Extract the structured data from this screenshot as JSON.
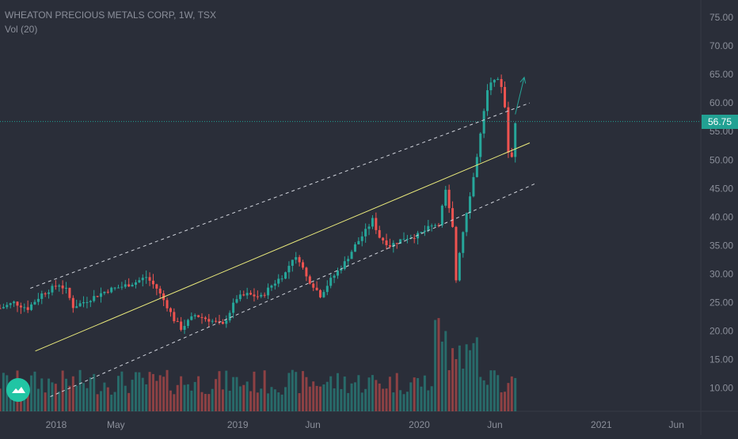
{
  "legend": {
    "symbol": "WHEATON PRECIOUS METALS CORP, 1W, TSX",
    "volume": "Vol (20)"
  },
  "last_price": "56.75",
  "colors": {
    "background": "#2a2e39",
    "up": "#26a69a",
    "down": "#ef5350",
    "trendline": "#ecec7c",
    "channel": "#d1d4dc",
    "price_line": "#22a193",
    "axis_text": "#8b8f9a"
  },
  "chart_data": {
    "type": "candlestick",
    "title": "",
    "xlabel": "",
    "ylabel": "",
    "y_ticks": [
      "10.00",
      "15.00",
      "20.00",
      "25.00",
      "30.00",
      "35.00",
      "40.00",
      "45.00",
      "50.00",
      "55.00",
      "60.00",
      "65.00",
      "70.00",
      "75.00"
    ],
    "ylim": [
      6,
      78
    ],
    "x_ticks": [
      {
        "label": "2018",
        "date": "2018-01-01"
      },
      {
        "label": "May",
        "date": "2018-05-01"
      },
      {
        "label": "2019",
        "date": "2019-01-01"
      },
      {
        "label": "Jun",
        "date": "2019-06-01"
      },
      {
        "label": "2020",
        "date": "2020-01-01"
      },
      {
        "label": "Jun",
        "date": "2020-06-01"
      },
      {
        "label": "2021",
        "date": "2021-01-01"
      },
      {
        "label": "Jun",
        "date": "2021-06-01"
      }
    ],
    "xlim": [
      "2017-09-10",
      "2021-07-20"
    ],
    "price_close_points": [
      [
        "2017-09-10",
        24
      ],
      [
        "2017-10-08",
        25
      ],
      [
        "2017-11-05",
        24
      ],
      [
        "2017-12-03",
        26.5
      ],
      [
        "2018-01-07",
        28.2
      ],
      [
        "2018-01-21",
        27.2
      ],
      [
        "2018-02-04",
        24.3
      ],
      [
        "2018-02-18",
        24.8
      ],
      [
        "2018-03-18",
        26
      ],
      [
        "2018-04-15",
        27.2
      ],
      [
        "2018-05-13",
        27.8
      ],
      [
        "2018-06-10",
        28.6
      ],
      [
        "2018-07-01",
        29.5
      ],
      [
        "2018-07-22",
        27.5
      ],
      [
        "2018-08-12",
        24.4
      ],
      [
        "2018-08-26",
        22
      ],
      [
        "2018-09-09",
        20.5
      ],
      [
        "2018-10-07",
        22.8
      ],
      [
        "2018-11-04",
        22
      ],
      [
        "2018-12-02",
        21
      ],
      [
        "2018-12-30",
        25.8
      ],
      [
        "2019-01-20",
        26.4
      ],
      [
        "2019-02-17",
        26
      ],
      [
        "2019-03-10",
        28
      ],
      [
        "2019-04-07",
        30.2
      ],
      [
        "2019-04-21",
        32.8
      ],
      [
        "2019-05-05",
        32.5
      ],
      [
        "2019-05-19",
        29.5
      ],
      [
        "2019-06-02",
        28
      ],
      [
        "2019-06-16",
        26.3
      ],
      [
        "2019-07-07",
        29
      ],
      [
        "2019-08-04",
        32
      ],
      [
        "2019-08-25",
        35
      ],
      [
        "2019-09-15",
        37.5
      ],
      [
        "2019-09-29",
        39.5
      ],
      [
        "2019-10-13",
        36.5
      ],
      [
        "2019-11-03",
        35
      ],
      [
        "2019-12-01",
        36.3
      ],
      [
        "2019-12-29",
        36.8
      ],
      [
        "2020-01-19",
        38
      ],
      [
        "2020-02-09",
        39
      ],
      [
        "2020-02-23",
        44.5
      ],
      [
        "2020-03-08",
        38
      ],
      [
        "2020-03-15",
        29
      ],
      [
        "2020-03-22",
        34
      ],
      [
        "2020-04-05",
        41
      ],
      [
        "2020-04-19",
        47
      ],
      [
        "2020-05-03",
        54.5
      ],
      [
        "2020-05-17",
        62
      ],
      [
        "2020-05-31",
        64.5
      ],
      [
        "2020-06-14",
        63
      ],
      [
        "2020-06-21",
        59.5
      ],
      [
        "2020-06-28",
        51
      ],
      [
        "2020-07-05",
        50.5
      ],
      [
        "2020-07-12",
        56.75
      ]
    ],
    "volume_ylim": [
      0,
      40
    ],
    "annotations": [
      {
        "type": "trendline",
        "from": [
          "2017-11-20",
          16.5
        ],
        "to": [
          "2020-08-10",
          53
        ]
      },
      {
        "type": "channel-upper",
        "from": [
          "2017-11-10",
          27.5
        ],
        "to": [
          "2020-08-10",
          60
        ]
      },
      {
        "type": "channel-lower",
        "from": [
          "2017-12-20",
          8.5
        ],
        "to": [
          "2020-08-25",
          46
        ]
      },
      {
        "type": "arrow",
        "from": [
          "2020-07-12",
          58
        ],
        "to": [
          "2020-07-30",
          64.5
        ]
      },
      {
        "type": "horizontal-price-line",
        "value": 56.75
      }
    ]
  }
}
